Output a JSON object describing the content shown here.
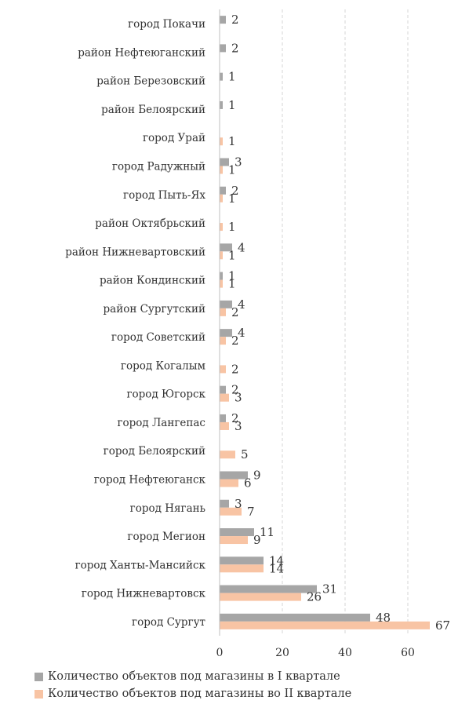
{
  "chart_data": {
    "type": "bar",
    "orientation": "horizontal",
    "categories": [
      "город Покачи",
      "район Нефтеюганский",
      "район Березовский",
      "район Белоярский",
      "город Урай",
      "город Радужный",
      "город Пыть-Ях",
      "район Октябрьский",
      "район Нижневартовский",
      "район Кондинский",
      "район Сургутский",
      "город Советский",
      "город Когалым",
      "город Югорск",
      "город Лангепас",
      "город Белоярский",
      "город Нефтеюганск",
      "город Нягань",
      "город Мегион",
      "город Ханты-Мансийск",
      "город Нижневартовск",
      "город Сургут"
    ],
    "series": [
      {
        "name": "Количество объектов под магазины в I квартале",
        "color": "#a6a6a6",
        "values": [
          2,
          2,
          1,
          1,
          null,
          3,
          2,
          null,
          4,
          1,
          4,
          4,
          null,
          2,
          2,
          null,
          9,
          3,
          11,
          14,
          31,
          48
        ]
      },
      {
        "name": "Количество объектов под магазины во II квартале",
        "color": "#f8c4a4",
        "values": [
          null,
          null,
          null,
          null,
          1,
          1,
          1,
          1,
          1,
          1,
          2,
          2,
          2,
          3,
          3,
          5,
          6,
          7,
          9,
          14,
          26,
          67
        ]
      }
    ],
    "x_ticks": [
      "0",
      "20",
      "40",
      "60"
    ],
    "xlim": [
      0,
      70
    ],
    "grid": "vertical-dashed",
    "legend_position": "bottom-left"
  }
}
